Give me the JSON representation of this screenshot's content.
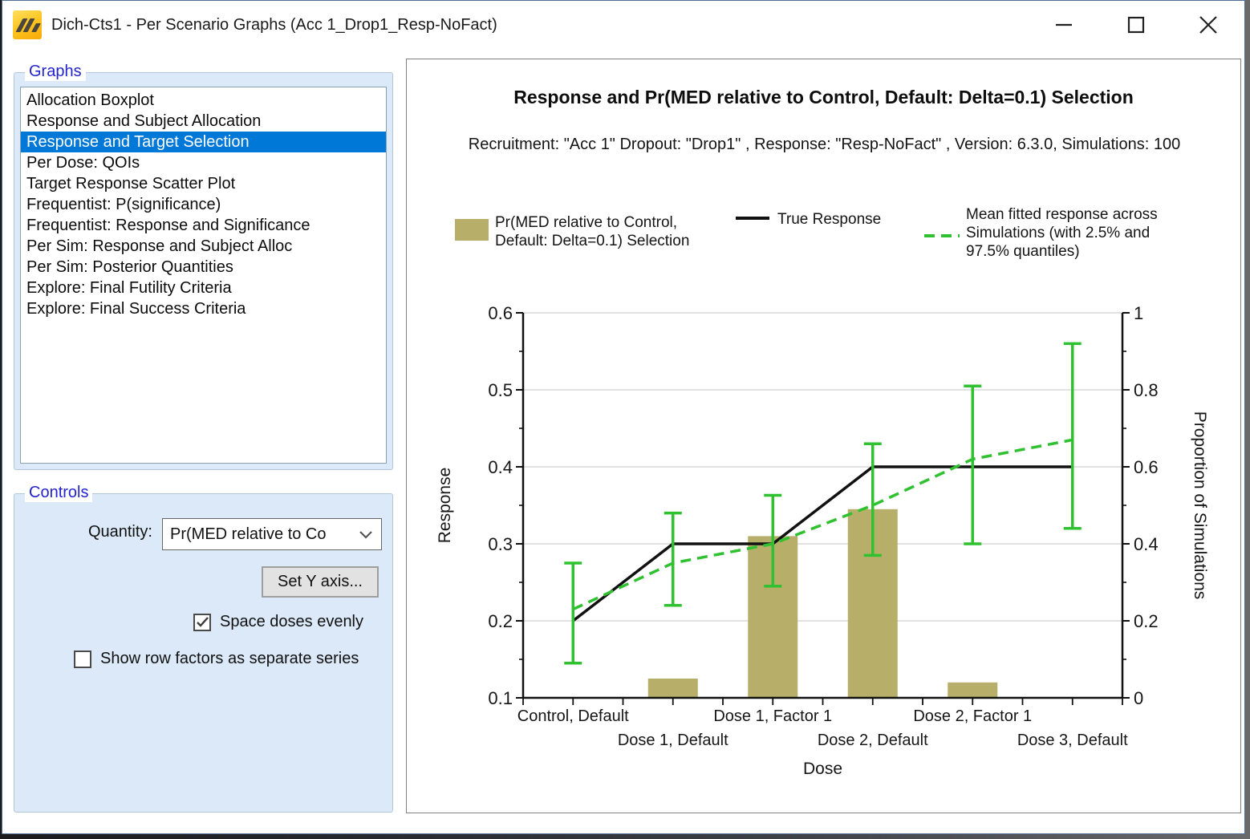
{
  "window": {
    "title": "Dich-Cts1 - Per Scenario Graphs (Acc 1_Drop1_Resp-NoFact)",
    "icons": {
      "app": "facts-logo-icon",
      "minimize": "minimize-icon",
      "maximize": "maximize-icon",
      "close": "close-icon"
    }
  },
  "sidebar": {
    "graphs": {
      "label": "Graphs",
      "items": [
        {
          "label": "Allocation Boxplot",
          "selected": false
        },
        {
          "label": "Response and Subject Allocation",
          "selected": false
        },
        {
          "label": "Response and Target Selection",
          "selected": true
        },
        {
          "label": "Per Dose: QOIs",
          "selected": false
        },
        {
          "label": "Target Response Scatter Plot",
          "selected": false
        },
        {
          "label": "Frequentist: P(significance)",
          "selected": false
        },
        {
          "label": "Frequentist: Response and Significance",
          "selected": false
        },
        {
          "label": "Per Sim: Response and Subject Alloc",
          "selected": false
        },
        {
          "label": "Per Sim: Posterior Quantities",
          "selected": false
        },
        {
          "label": "Explore: Final Futility Criteria",
          "selected": false
        },
        {
          "label": "Explore: Final Success Criteria",
          "selected": false
        }
      ]
    },
    "controls": {
      "label": "Controls",
      "quantity_label": "Quantity:",
      "quantity_value": "Pr(MED relative to Co",
      "set_y_axis_button": "Set Y axis...",
      "checkboxes": [
        {
          "label": "Space doses evenly",
          "checked": true
        },
        {
          "label": "Show row factors as separate series",
          "checked": false
        }
      ]
    }
  },
  "chart_data": {
    "type": "combo",
    "title": "Response and Pr(MED relative to Control, Default: Delta=0.1) Selection",
    "subtitle": "Recruitment: \"Acc 1\" Dropout: \"Drop1\" , Response: \"Resp-NoFact\" , Version: 6.3.0, Simulations: 100",
    "categories": [
      "Control, Default",
      "Dose 1, Default",
      "Dose 1, Factor 1",
      "Dose 2, Default",
      "Dose 2, Factor 1",
      "Dose 3, Default"
    ],
    "xlabel": "Dose",
    "grid": true,
    "legend_position": "top",
    "axes": {
      "left": {
        "label": "Response",
        "min": 0.1,
        "max": 0.6,
        "ticks": [
          "0.1",
          "0.2",
          "0.3",
          "0.4",
          "0.5",
          "0.6"
        ]
      },
      "right": {
        "label": "Proportion of Simulations",
        "min": 0,
        "max": 1,
        "ticks": [
          "0",
          "0.2",
          "0.4",
          "0.6",
          "0.8",
          "1"
        ]
      }
    },
    "series": [
      {
        "name": "Pr(MED relative to Control, Default: Delta=0.1) Selection",
        "type": "bar",
        "axis": "right",
        "color": "#b7af69",
        "values": [
          0,
          0.05,
          0.42,
          0.49,
          0.04,
          0
        ]
      },
      {
        "name": "True Response",
        "type": "line",
        "axis": "left",
        "color": "#111111",
        "values": [
          0.2,
          0.3,
          0.3,
          0.4,
          0.4,
          0.4
        ]
      },
      {
        "name": "Mean fitted response across Simulations (with 2.5% and 97.5% quantiles)",
        "type": "dashed-line-with-error-bars",
        "axis": "left",
        "color": "#2fc12f",
        "values": [
          0.215,
          0.275,
          0.3,
          0.35,
          0.41,
          0.435
        ],
        "lower": [
          0.145,
          0.22,
          0.245,
          0.285,
          0.3,
          0.32
        ],
        "upper": [
          0.275,
          0.34,
          0.363,
          0.43,
          0.505,
          0.56
        ]
      }
    ]
  }
}
